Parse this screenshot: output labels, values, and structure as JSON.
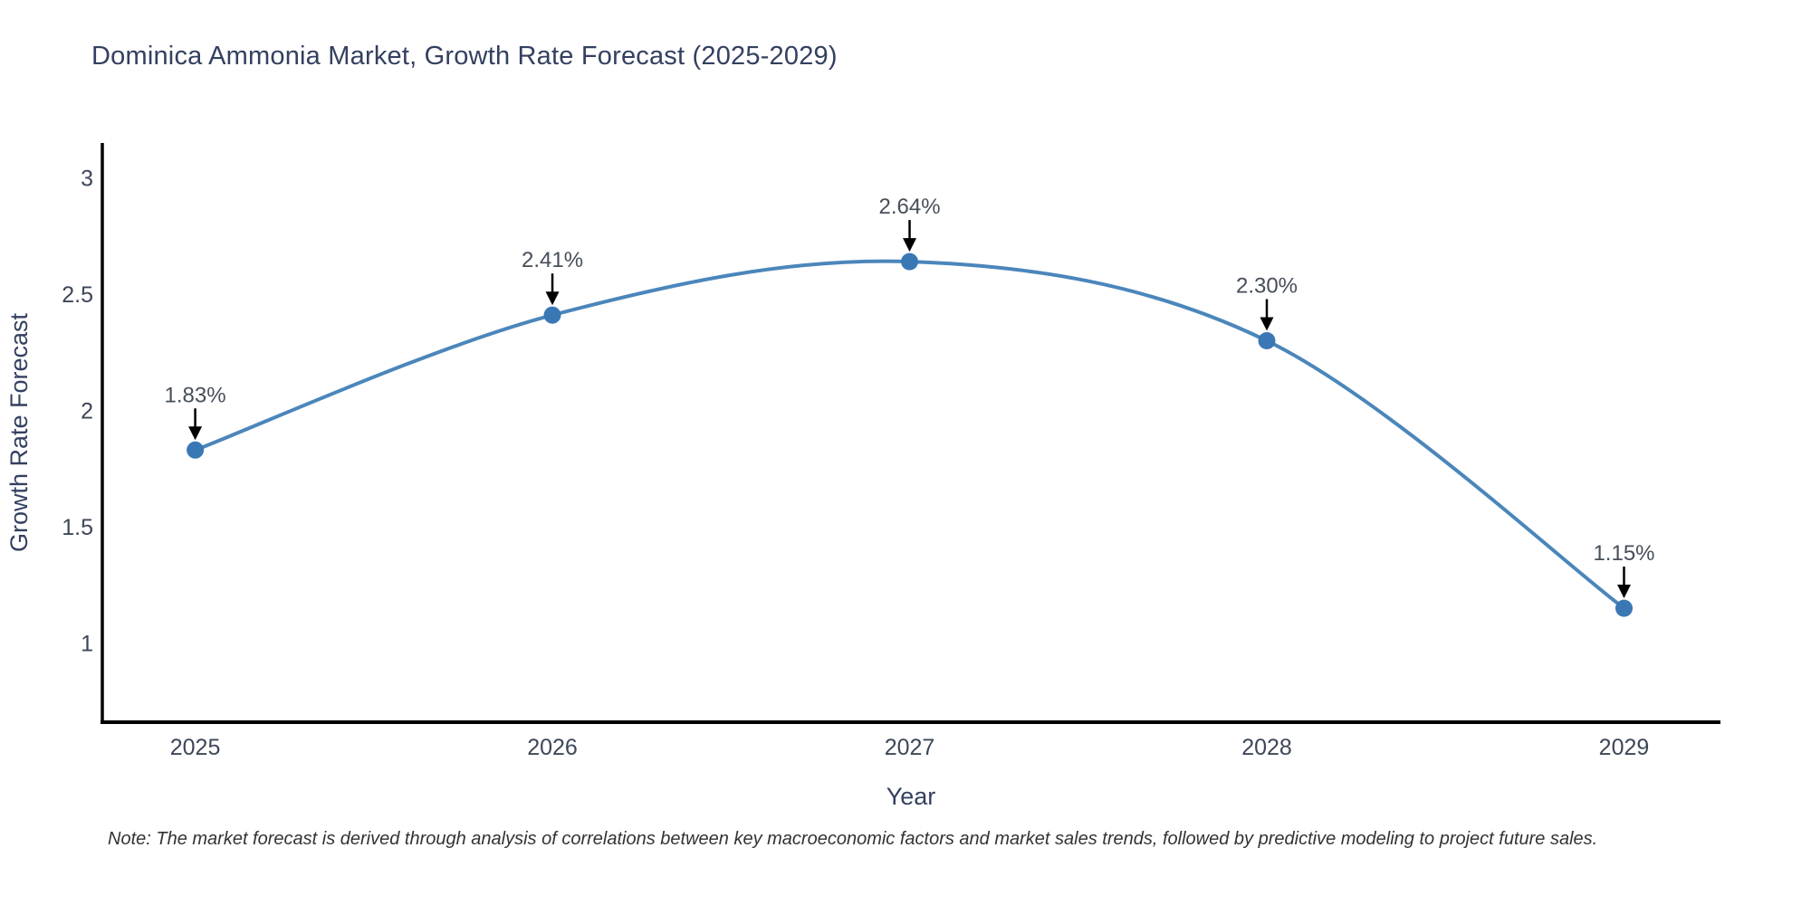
{
  "chart": {
    "title": "Dominica Ammonia Market, Growth Rate Forecast (2025-2029)"
  },
  "note": {
    "text": "Note: The market forecast is derived through analysis of correlations between key macroeconomic factors and market sales trends, followed by predictive modeling to project future sales."
  },
  "chart_data": {
    "type": "line",
    "title": "Dominica Ammonia Market, Growth Rate Forecast (2025-2029)",
    "xlabel": "Year",
    "ylabel": "Growth Rate Forecast",
    "x": [
      2025,
      2026,
      2027,
      2028,
      2029
    ],
    "series": [
      {
        "name": "Growth Rate Forecast",
        "values": [
          1.83,
          2.41,
          2.64,
          2.3,
          1.15
        ]
      }
    ],
    "point_labels": [
      "1.83%",
      "2.41%",
      "2.64%",
      "2.30%",
      "1.15%"
    ],
    "xticks": [
      "2025",
      "2026",
      "2027",
      "2028",
      "2029"
    ],
    "yticks": [
      1,
      1.5,
      2,
      2.5,
      3
    ],
    "xlim": [
      2024.74,
      2029.27
    ],
    "ylim": [
      0.66,
      3.15
    ],
    "line_shape": "spline",
    "grid": false,
    "legend_position": "none",
    "markers": true,
    "annotation_arrows": true,
    "colors": {
      "line": "#4b86bb",
      "marker": "#3a78b5",
      "arrow": "#000000",
      "axis_line": "#000000",
      "tick_text": "#3d4758",
      "axis_title_text": "#344060",
      "annotation_text": "#464e59",
      "title_text": "#344060",
      "note_text": "#333333",
      "background": "#ffffff"
    }
  }
}
